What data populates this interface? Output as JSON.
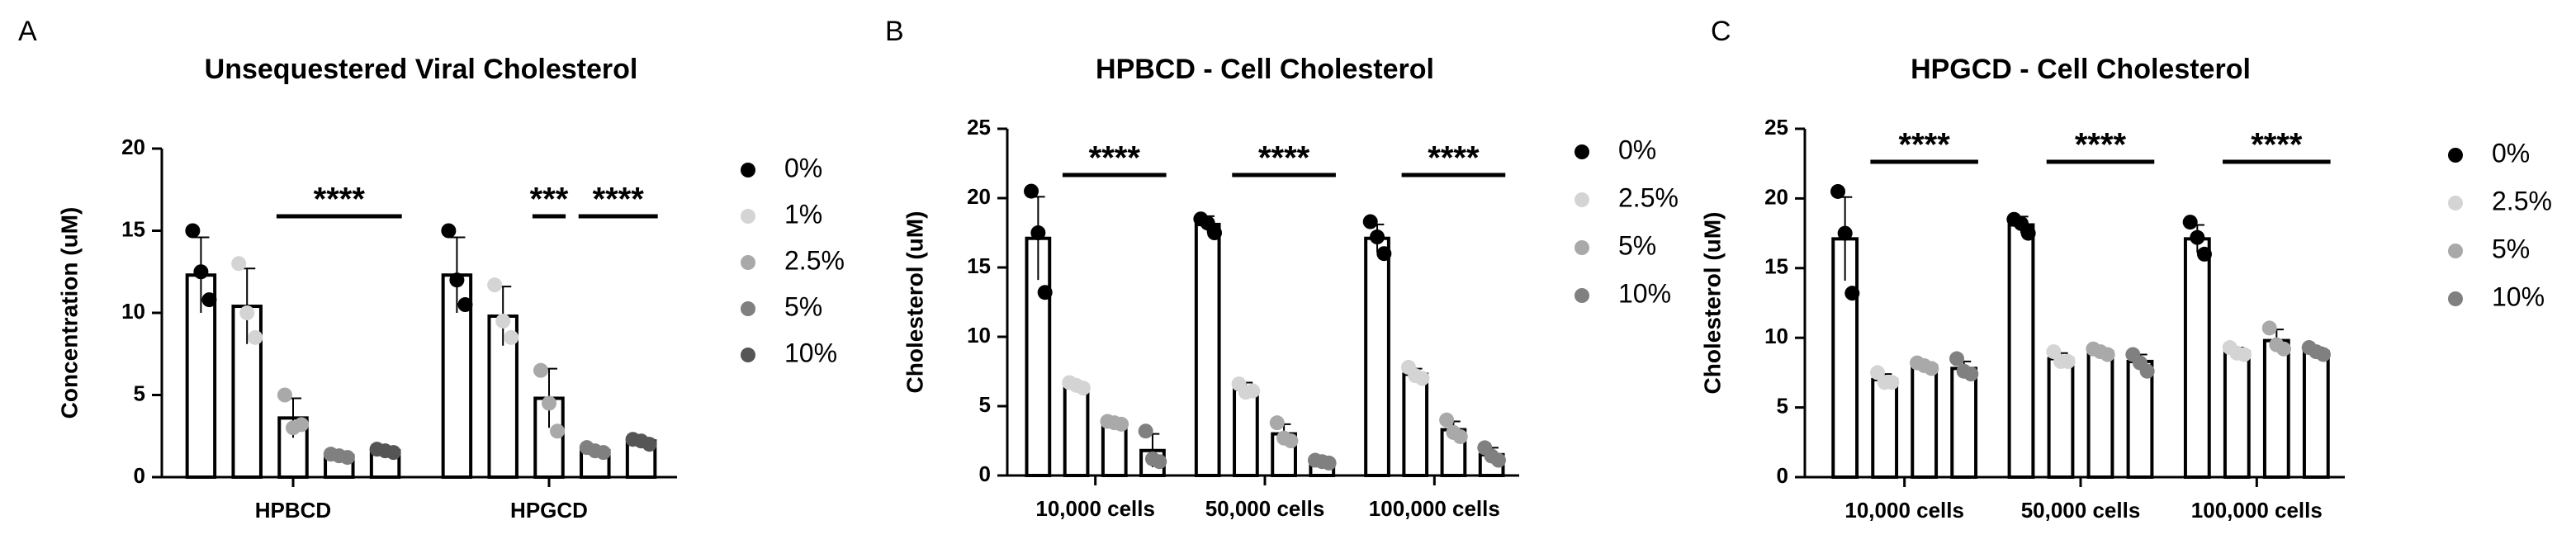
{
  "chart_data": [
    {
      "type": "bar",
      "panel": "A",
      "title": "Unsequestered Viral Cholesterol",
      "y_label": "Concentration (uM)",
      "categories": [
        "HPBCD",
        "HPGCD"
      ],
      "ylim": [
        0,
        20
      ],
      "yticks": [
        0,
        5,
        10,
        15,
        20
      ],
      "annotations": [
        "****",
        "***",
        "****"
      ],
      "series": [
        {
          "name": "0%",
          "color": "#000000",
          "values": [
            12.3,
            12.3
          ],
          "errors": [
            2.3,
            2.3
          ],
          "points": [
            [
              15,
              12.5,
              10.8
            ],
            [
              15,
              12,
              10.5
            ]
          ]
        },
        {
          "name": "1%",
          "color": "#d4d4d4",
          "values": [
            10.4,
            9.8
          ],
          "errors": [
            2.3,
            1.8
          ],
          "points": [
            [
              13,
              10,
              8.5
            ],
            [
              11.7,
              9.5,
              8.5
            ]
          ]
        },
        {
          "name": "2.5%",
          "color": "#a9a9a9",
          "values": [
            3.6,
            4.8
          ],
          "errors": [
            1.2,
            1.8
          ],
          "points": [
            [
              5,
              3,
              3.2
            ],
            [
              6.5,
              4.5,
              2.8
            ]
          ]
        },
        {
          "name": "5%",
          "color": "#808080",
          "values": [
            1.3,
            1.6
          ],
          "errors": [
            0.2,
            0.2
          ],
          "points": [
            [
              1.4,
              1.3,
              1.2
            ],
            [
              1.8,
              1.6,
              1.5
            ]
          ]
        },
        {
          "name": "10%",
          "color": "#555555",
          "values": [
            1.6,
            2.2
          ],
          "errors": [
            0.15,
            0.2
          ],
          "points": [
            [
              1.7,
              1.6,
              1.5
            ],
            [
              2.3,
              2.2,
              2.0
            ]
          ]
        }
      ]
    },
    {
      "type": "bar",
      "panel": "B",
      "title": "HPBCD - Cell Cholesterol",
      "y_label": "Cholesterol (uM)",
      "categories": [
        "10,000 cells",
        "50,000 cells",
        "100,000 cells"
      ],
      "ylim": [
        0,
        25
      ],
      "yticks": [
        0,
        5,
        10,
        15,
        20,
        25
      ],
      "annotations": [
        "****",
        "****",
        "****"
      ],
      "series": [
        {
          "name": "0%",
          "color": "#000000",
          "values": [
            17.1,
            18.1,
            17.1
          ],
          "errors": [
            3.0,
            0.6,
            1.0
          ],
          "points": [
            [
              20.5,
              17.5,
              13.2
            ],
            [
              18.5,
              18.2,
              17.5
            ],
            [
              18.3,
              17.2,
              16
            ]
          ]
        },
        {
          "name": "2.5%",
          "color": "#d4d4d4",
          "values": [
            6.5,
            6.2,
            7.3
          ],
          "errors": [
            0.2,
            0.5,
            0.4
          ],
          "points": [
            [
              6.7,
              6.5,
              6.3
            ],
            [
              6.6,
              6.0,
              6.1
            ],
            [
              7.8,
              7.2,
              7.0
            ]
          ]
        },
        {
          "name": "5%",
          "color": "#a9a9a9",
          "values": [
            3.8,
            3.0,
            3.3
          ],
          "errors": [
            0.2,
            0.7,
            0.6
          ],
          "points": [
            [
              3.9,
              3.8,
              3.7
            ],
            [
              3.8,
              2.7,
              2.5
            ],
            [
              4.0,
              3.1,
              2.8
            ]
          ]
        },
        {
          "name": "10%",
          "color": "#808080",
          "values": [
            1.8,
            1.0,
            1.5
          ],
          "errors": [
            1.2,
            0.1,
            0.5
          ],
          "points": [
            [
              3.2,
              1.2,
              1.0
            ],
            [
              1.1,
              1.0,
              0.9
            ],
            [
              2.0,
              1.4,
              1.1
            ]
          ]
        }
      ]
    },
    {
      "type": "bar",
      "panel": "C",
      "title": "HPGCD - Cell Cholesterol",
      "y_label": "Cholesterol (uM)",
      "categories": [
        "10,000 cells",
        "50,000 cells",
        "100,000 cells"
      ],
      "ylim": [
        0,
        25
      ],
      "yticks": [
        0,
        5,
        10,
        15,
        20,
        25
      ],
      "annotations": [
        "****",
        "****",
        "****"
      ],
      "series": [
        {
          "name": "0%",
          "color": "#000000",
          "values": [
            17.1,
            18.1,
            17.1
          ],
          "errors": [
            3.0,
            0.6,
            1.0
          ],
          "points": [
            [
              20.5,
              17.5,
              13.2
            ],
            [
              18.5,
              18.2,
              17.5
            ],
            [
              18.3,
              17.2,
              16
            ]
          ]
        },
        {
          "name": "2.5%",
          "color": "#d4d4d4",
          "values": [
            7.0,
            8.5,
            9.0
          ],
          "errors": [
            0.4,
            0.4,
            0.3
          ],
          "points": [
            [
              7.5,
              6.8,
              6.8
            ],
            [
              9.0,
              8.3,
              8.3
            ],
            [
              9.3,
              8.9,
              8.8
            ]
          ]
        },
        {
          "name": "5%",
          "color": "#a9a9a9",
          "values": [
            8.0,
            9.0,
            9.8
          ],
          "errors": [
            0.2,
            0.2,
            0.8
          ],
          "points": [
            [
              8.2,
              8.0,
              7.8
            ],
            [
              9.2,
              9.0,
              8.8
            ],
            [
              10.7,
              9.5,
              9.2
            ]
          ]
        },
        {
          "name": "10%",
          "color": "#808080",
          "values": [
            7.8,
            8.3,
            9.0
          ],
          "errors": [
            0.5,
            0.5,
            0.3
          ],
          "points": [
            [
              8.5,
              7.6,
              7.4
            ],
            [
              8.8,
              8.2,
              7.6
            ],
            [
              9.3,
              9.0,
              8.8
            ]
          ]
        }
      ]
    }
  ]
}
